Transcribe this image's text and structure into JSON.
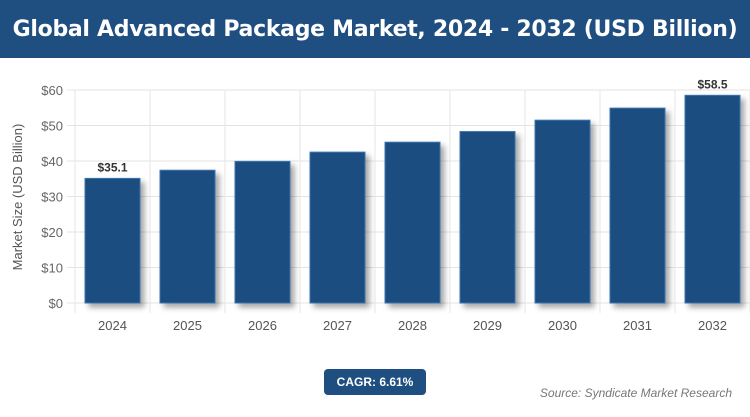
{
  "title": "Global Advanced Package Market, 2024 - 2032 (USD Billion)",
  "cagr_label": "CAGR: 6.61%",
  "source": "Source: Syndicate Market Research",
  "colors": {
    "bar": "#1f4e80",
    "header": "#1f4e80"
  },
  "chart_data": {
    "type": "bar",
    "title": "Global Advanced Package Market, 2024 - 2032 (USD Billion)",
    "xlabel": "",
    "ylabel": "Market Size (USD Billion)",
    "categories": [
      "2024",
      "2025",
      "2026",
      "2027",
      "2028",
      "2029",
      "2030",
      "2031",
      "2032"
    ],
    "values": [
      35.1,
      37.4,
      39.9,
      42.5,
      45.3,
      48.3,
      51.5,
      54.9,
      58.5
    ],
    "data_labels": {
      "0": "$35.1",
      "8": "$58.5"
    },
    "ylim": [
      0,
      60
    ],
    "yticks": [
      "$0",
      "$10",
      "$20",
      "$30",
      "$40",
      "$50",
      "$60"
    ],
    "grid": true
  }
}
